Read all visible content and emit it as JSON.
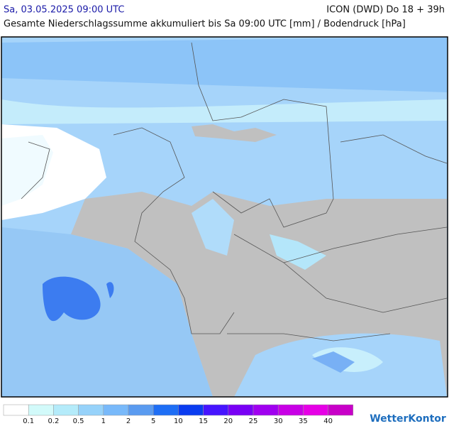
{
  "header": {
    "datetime": "Sa, 03.05.2025 09:00 UTC",
    "model": "ICON (DWD) Do 18 + 39h",
    "subtitle": "Gesamte Niederschlagssumme akkumuliert bis Sa 09:00 UTC [mm] / Bodendruck [hPa]"
  },
  "legend": {
    "colors": [
      "#ffffff",
      "#d2fafa",
      "#b4ebfa",
      "#96d2fa",
      "#78b9fa",
      "#5a9bf0",
      "#1e6ef5",
      "#0a3cf0",
      "#4614ff",
      "#7800f5",
      "#a000f0",
      "#c800e6",
      "#e600e6",
      "#c800c8"
    ],
    "labels": [
      0.1,
      0.2,
      0.5,
      1,
      2,
      5,
      10,
      15,
      20,
      25,
      30,
      35,
      40
    ]
  },
  "logo": "WetterKontor"
}
